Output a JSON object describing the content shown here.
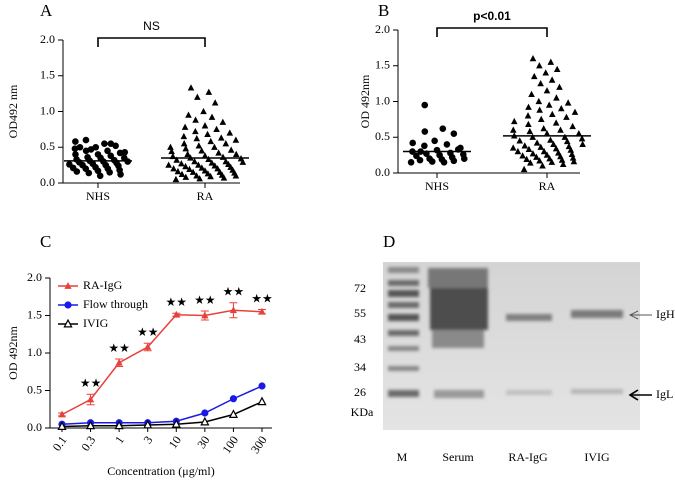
{
  "chart_data": [
    {
      "type": "dotplot",
      "panel": "A",
      "ylabel": "OD492 nm",
      "annotation": "NS",
      "ylim": [
        0,
        2
      ],
      "yticks": [
        {
          "value": 0,
          "label": "0.0"
        },
        {
          "value": 0.5,
          "label": "0.5"
        },
        {
          "value": 1,
          "label": "1.0"
        },
        {
          "value": 1.5,
          "label": "1.5"
        },
        {
          "value": 2,
          "label": "2.0"
        }
      ],
      "series": [
        {
          "name": "NHS",
          "marker": "circle",
          "color": "#000000",
          "mean": 0.31,
          "values": [
            0.58,
            0.55,
            0.6,
            0.52,
            0.5,
            0.48,
            0.45,
            0.45,
            0.42,
            0.4,
            0.4,
            0.38,
            0.36,
            0.35,
            0.35,
            0.33,
            0.32,
            0.31,
            0.3,
            0.3,
            0.29,
            0.28,
            0.27,
            0.26,
            0.25,
            0.25,
            0.24,
            0.22,
            0.21,
            0.2,
            0.2,
            0.18,
            0.17,
            0.16,
            0.15,
            0.14,
            0.12,
            0.1,
            0.5,
            0.55,
            0.47,
            0.43
          ]
        },
        {
          "name": "RA",
          "marker": "triangle",
          "color": "#000000",
          "mean": 0.35,
          "values": [
            1.33,
            1.27,
            1.2,
            1.12,
            1.0,
            0.95,
            0.92,
            0.88,
            0.85,
            0.8,
            0.78,
            0.75,
            0.72,
            0.7,
            0.68,
            0.65,
            0.63,
            0.62,
            0.6,
            0.58,
            0.55,
            0.55,
            0.52,
            0.5,
            0.5,
            0.48,
            0.46,
            0.45,
            0.44,
            0.42,
            0.4,
            0.4,
            0.38,
            0.37,
            0.36,
            0.35,
            0.34,
            0.33,
            0.32,
            0.3,
            0.3,
            0.29,
            0.28,
            0.27,
            0.26,
            0.25,
            0.25,
            0.24,
            0.23,
            0.22,
            0.21,
            0.2,
            0.2,
            0.19,
            0.18,
            0.17,
            0.16,
            0.15,
            0.15,
            0.14,
            0.13,
            0.12,
            0.11,
            0.1,
            0.1,
            0.09,
            0.08,
            0.07,
            0.06,
            0.05
          ]
        }
      ]
    },
    {
      "type": "dotplot",
      "panel": "B",
      "ylabel": "OD 492nm",
      "annotation": "p<0.01",
      "ylim": [
        0,
        2
      ],
      "yticks": [
        {
          "value": 0,
          "label": "0.0"
        },
        {
          "value": 0.5,
          "label": "0.5"
        },
        {
          "value": 1,
          "label": "1.0"
        },
        {
          "value": 1.5,
          "label": "1.5"
        },
        {
          "value": 2,
          "label": "2.0"
        }
      ],
      "series": [
        {
          "name": "NHS",
          "marker": "circle",
          "color": "#000000",
          "mean": 0.3,
          "values": [
            0.95,
            0.62,
            0.58,
            0.55,
            0.45,
            0.42,
            0.4,
            0.38,
            0.35,
            0.32,
            0.3,
            0.28,
            0.27,
            0.26,
            0.25,
            0.24,
            0.22,
            0.2,
            0.2,
            0.19,
            0.18,
            0.17,
            0.16,
            0.15,
            0.15,
            0.3,
            0.33
          ]
        },
        {
          "name": "RA",
          "marker": "triangle",
          "color": "#000000",
          "mean": 0.52,
          "values": [
            1.6,
            1.55,
            1.5,
            1.45,
            1.4,
            1.35,
            1.3,
            1.25,
            1.2,
            1.15,
            1.1,
            1.05,
            1.0,
            0.98,
            0.95,
            0.92,
            0.9,
            0.88,
            0.85,
            0.82,
            0.8,
            0.78,
            0.75,
            0.72,
            0.7,
            0.68,
            0.65,
            0.62,
            0.6,
            0.6,
            0.58,
            0.55,
            0.55,
            0.52,
            0.5,
            0.5,
            0.48,
            0.46,
            0.45,
            0.44,
            0.42,
            0.4,
            0.4,
            0.38,
            0.37,
            0.36,
            0.35,
            0.34,
            0.33,
            0.32,
            0.3,
            0.3,
            0.28,
            0.27,
            0.26,
            0.25,
            0.24,
            0.23,
            0.22,
            0.21,
            0.2,
            0.19,
            0.18,
            0.17,
            0.16,
            0.15,
            0.14,
            0.12,
            0.1,
            0.05
          ]
        }
      ]
    },
    {
      "type": "line",
      "panel": "C",
      "ylabel": "OD 492nm",
      "xlabel": "Concentration (μg/ml)",
      "categories": [
        "0.1",
        "0.3",
        "1",
        "3",
        "10",
        "30",
        "100",
        "300"
      ],
      "sig_labels": [
        null,
        "★★",
        "★★",
        "★★",
        "★★",
        "★★",
        "★★",
        "★★"
      ],
      "ylim": [
        0,
        2
      ],
      "yticks": [
        {
          "value": 0,
          "label": "0.0"
        },
        {
          "value": 0.5,
          "label": "0.5"
        },
        {
          "value": 1,
          "label": "1.0"
        },
        {
          "value": 1.5,
          "label": "1.5"
        },
        {
          "value": 2,
          "label": "2.0"
        }
      ],
      "series": [
        {
          "name": "RA-IgG",
          "marker": "triangle",
          "color": "#e8413c",
          "values": [
            0.18,
            0.38,
            0.87,
            1.08,
            1.51,
            1.5,
            1.57,
            1.55
          ],
          "errors": [
            0.02,
            0.07,
            0.05,
            0.05,
            0.02,
            0.06,
            0.1,
            0.03
          ]
        },
        {
          "name": "Flow through",
          "marker": "circle",
          "color": "#1a1ae6",
          "values": [
            0.05,
            0.07,
            0.07,
            0.07,
            0.09,
            0.2,
            0.39,
            0.56
          ]
        },
        {
          "name": "IVIG",
          "marker": "open-triangle",
          "color": "#000000",
          "values": [
            0.02,
            0.03,
            0.03,
            0.04,
            0.05,
            0.08,
            0.18,
            0.35
          ]
        }
      ]
    }
  ],
  "gel": {
    "panel": "D",
    "sizes": [
      "72",
      "55",
      "43",
      "34",
      "26"
    ],
    "unit": "KDa",
    "lanes": [
      "M",
      "Serum",
      "RA-IgG",
      "IVIG"
    ],
    "heavy": "IgH",
    "light": "IgL"
  }
}
